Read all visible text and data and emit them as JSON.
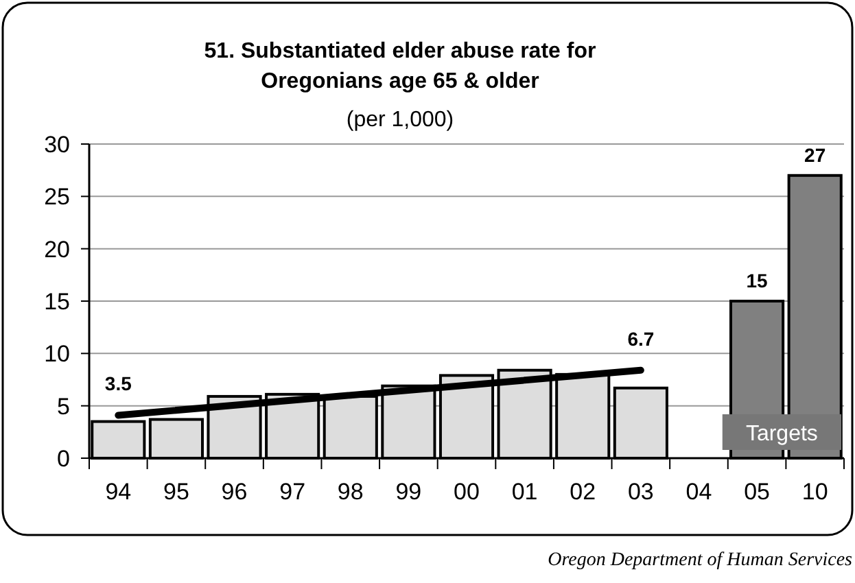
{
  "chart_data": {
    "type": "bar",
    "title": "51. Substantiated elder abuse rate for Oregonians age 65 & older",
    "subtitle": "(per 1,000)",
    "categories": [
      "94",
      "95",
      "96",
      "97",
      "98",
      "99",
      "00",
      "01",
      "02",
      "03",
      "04",
      "05",
      "10"
    ],
    "series": [
      {
        "values": [
          3.5,
          3.7,
          5.9,
          6.1,
          5.9,
          6.9,
          7.9,
          8.4,
          8.0,
          6.7,
          null,
          15,
          27
        ],
        "colors": [
          "#dddddd",
          "#dddddd",
          "#dddddd",
          "#dddddd",
          "#dddddd",
          "#dddddd",
          "#dddddd",
          "#dddddd",
          "#dddddd",
          "#dddddd",
          null,
          "#808080",
          "#808080"
        ],
        "value_labels": [
          "3.5",
          null,
          null,
          null,
          null,
          null,
          null,
          null,
          null,
          "6.7",
          null,
          "15",
          "27"
        ]
      },
      {
        "type": "line",
        "x": [
          "94",
          "03"
        ],
        "values": [
          4.1,
          8.4
        ],
        "color": "#000000"
      }
    ],
    "ylim": [
      0,
      30
    ],
    "yticks": [
      0,
      5,
      10,
      15,
      20,
      25,
      30
    ],
    "grid": "y",
    "annotations": [
      "Targets",
      "Oregon Department of Human Services"
    ]
  }
}
